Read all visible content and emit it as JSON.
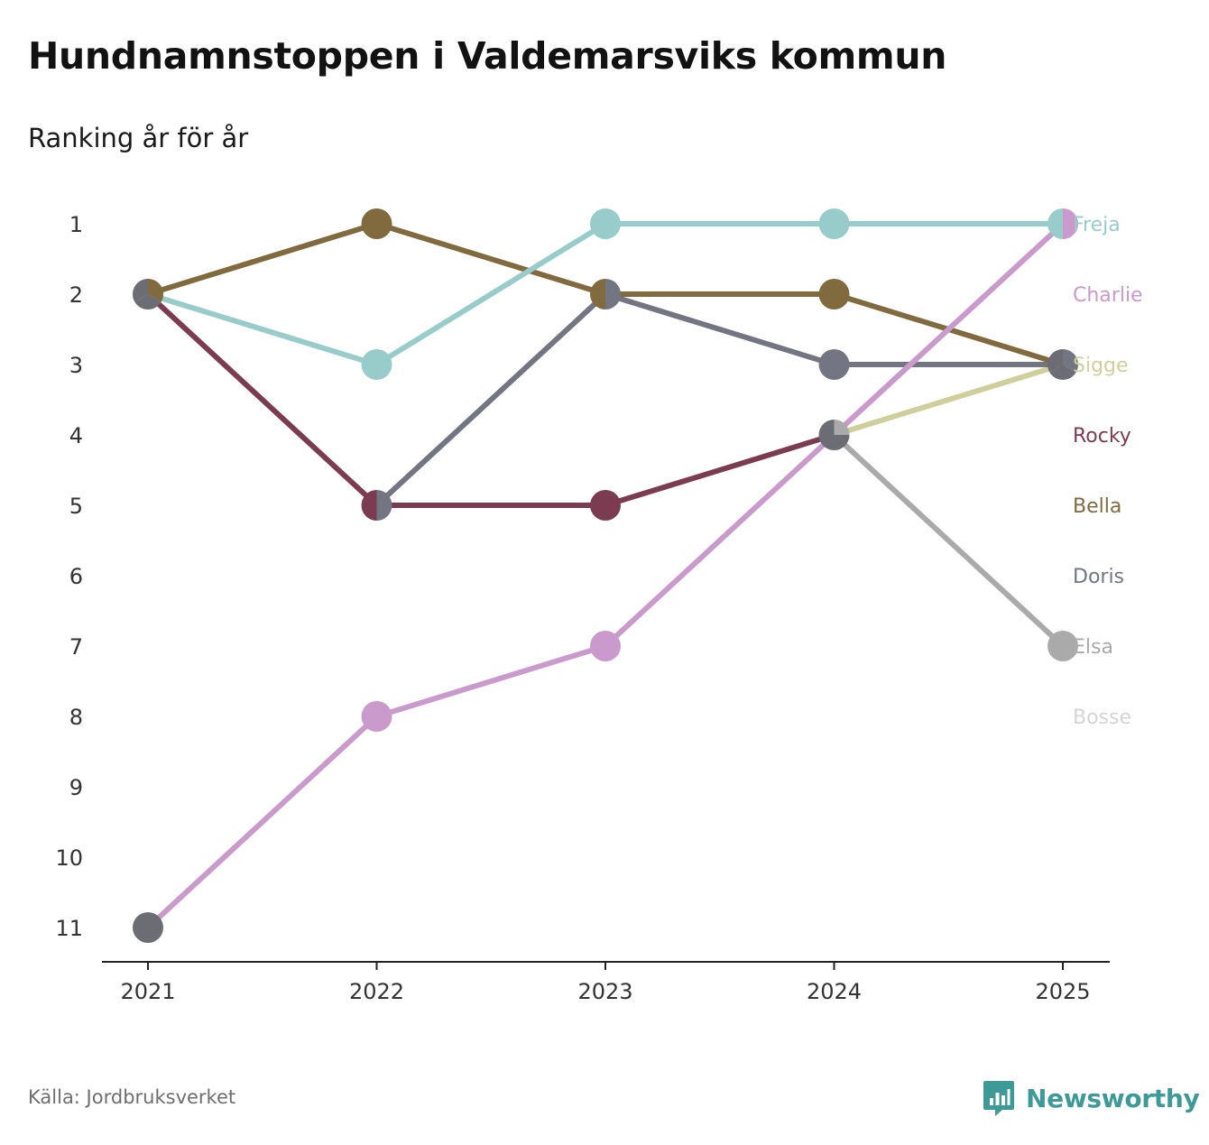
{
  "header": {
    "title": "Hundnamnstoppen i Valdemarsviks kommun",
    "subtitle": "Ranking år för år"
  },
  "footer": {
    "source": "Källa: Jordbruksverket",
    "brand": "Newsworthy",
    "brand_icon": "bar-chart-speech-bubble-icon"
  },
  "colors": {
    "axis": "#222222",
    "tick_text": "#333333",
    "marker_default": "#6c6c74",
    "brand": "#3e9a96"
  },
  "chart_data": {
    "type": "line",
    "subtype": "bump",
    "title": "Hundnamnstoppen i Valdemarsviks kommun",
    "subtitle": "Ranking år för år",
    "xlabel": "",
    "ylabel": "",
    "x": [
      2021,
      2022,
      2023,
      2024,
      2025
    ],
    "x_tick_labels": [
      "2021",
      "2022",
      "2023",
      "2024",
      "2025"
    ],
    "y_tick_labels": [
      "1",
      "2",
      "3",
      "4",
      "5",
      "6",
      "7",
      "8",
      "9",
      "10",
      "11"
    ],
    "ylim": [
      1,
      11
    ],
    "y_inverted": true,
    "grid": false,
    "legend_placement": "right, labels at end of lines",
    "legend_rows": [
      "Freja",
      "Charlie",
      "Sigge",
      "Rocky",
      "Bella",
      "Doris",
      "Elsa",
      "Bosse"
    ],
    "series": [
      {
        "name": "Freja",
        "color": "#98cccb",
        "values": [
          2,
          3,
          1,
          1,
          1
        ]
      },
      {
        "name": "Charlie",
        "color": "#c99acb",
        "values": [
          11,
          8,
          7,
          4,
          1
        ]
      },
      {
        "name": "Sigge",
        "color": "#cfcf9c",
        "values": [
          null,
          null,
          null,
          4,
          3
        ]
      },
      {
        "name": "Rocky",
        "color": "#7b3b50",
        "values": [
          2,
          5,
          5,
          4,
          null
        ]
      },
      {
        "name": "Bella",
        "color": "#806a3e",
        "values": [
          2,
          1,
          2,
          2,
          3
        ]
      },
      {
        "name": "Doris",
        "color": "#737582",
        "values": [
          null,
          5,
          2,
          3,
          3
        ]
      },
      {
        "name": "Elsa",
        "color": "#aaaaaa",
        "values": [
          null,
          null,
          null,
          4,
          7
        ]
      },
      {
        "name": "Bosse",
        "color": "#d4d4d4",
        "values": [
          null,
          null,
          null,
          null,
          null
        ]
      }
    ]
  }
}
